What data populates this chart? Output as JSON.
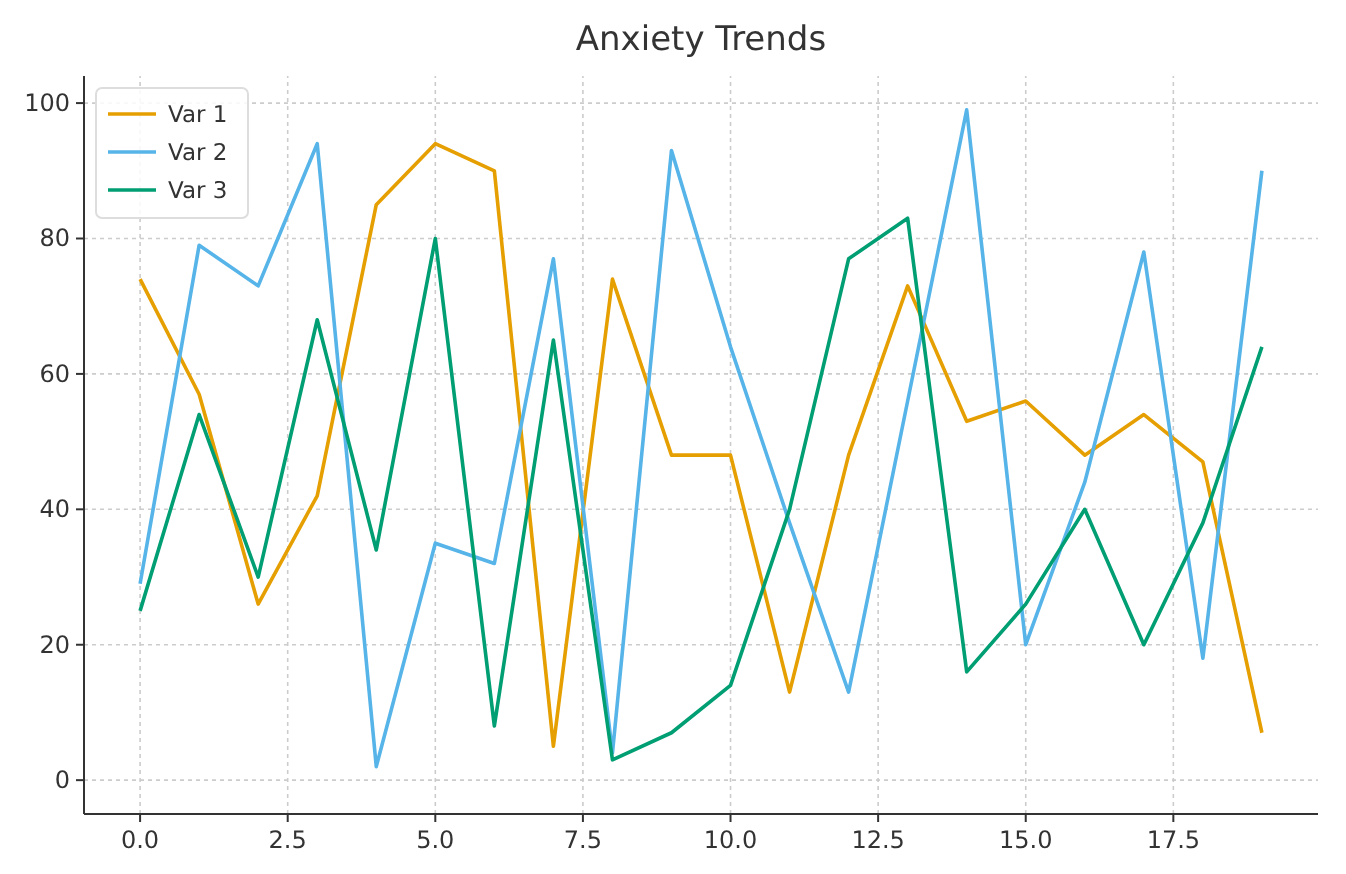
{
  "chart_data": {
    "type": "line",
    "title": "Anxiety Trends",
    "x": [
      0,
      1,
      2,
      3,
      4,
      5,
      6,
      7,
      8,
      9,
      10,
      11,
      12,
      13,
      14,
      15,
      16,
      17,
      18,
      19
    ],
    "series": [
      {
        "name": "Var 1",
        "color": "#e69f00",
        "values": [
          74,
          57,
          26,
          42,
          85,
          94,
          90,
          5,
          74,
          48,
          48,
          13,
          48,
          73,
          53,
          56,
          48,
          54,
          47,
          7
        ]
      },
      {
        "name": "Var 2",
        "color": "#56b4e9",
        "values": [
          29,
          79,
          73,
          94,
          2,
          35,
          32,
          77,
          4,
          93,
          64,
          38,
          13,
          56,
          99,
          20,
          44,
          78,
          18,
          90
        ]
      },
      {
        "name": "Var 3",
        "color": "#009e73",
        "values": [
          25,
          54,
          30,
          68,
          34,
          80,
          8,
          65,
          3,
          7,
          14,
          40,
          77,
          83,
          16,
          26,
          40,
          20,
          38,
          64
        ]
      }
    ],
    "xlim": [
      -0.95,
      19.95
    ],
    "xticks": [
      {
        "value": 0,
        "label": "0.0"
      },
      2.5,
      {
        "value": 5,
        "label": "5.0"
      },
      7.5,
      {
        "value": 10,
        "label": "10.0"
      },
      12.5,
      {
        "value": 15,
        "label": "15.0"
      },
      17.5
    ],
    "ylim": [
      -5,
      104
    ],
    "yticks": [
      0,
      20,
      40,
      60,
      80,
      100
    ],
    "grid": true,
    "legend": "top left",
    "line_style": "solid",
    "marker": "none"
  }
}
